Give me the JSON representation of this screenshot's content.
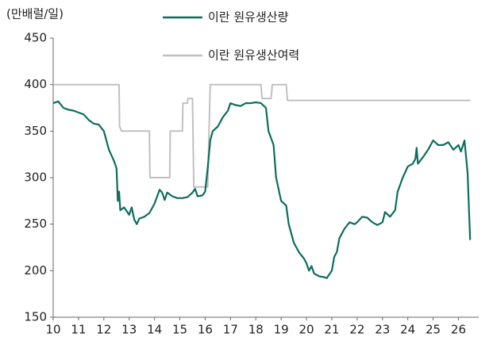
{
  "chart_data": {
    "type": "line",
    "y_label": "(만배럴/일)",
    "xlim": [
      10,
      26.8
    ],
    "xticks": [
      10,
      11,
      12,
      13,
      14,
      15,
      16,
      17,
      18,
      19,
      20,
      21,
      22,
      23,
      24,
      25,
      26
    ],
    "ylim": [
      150,
      450
    ],
    "yticks": [
      150,
      200,
      250,
      300,
      350,
      400,
      450
    ],
    "grid": false,
    "series": [
      {
        "name": "이란 원유생산량",
        "color": "#0b6e5b",
        "x": [
          10.0,
          10.2,
          10.4,
          10.6,
          10.8,
          11.0,
          11.2,
          11.4,
          11.6,
          11.8,
          12.0,
          12.2,
          12.4,
          12.5,
          12.55,
          12.6,
          12.65,
          12.8,
          13.0,
          13.1,
          13.2,
          13.3,
          13.4,
          13.6,
          13.8,
          14.0,
          14.2,
          14.3,
          14.4,
          14.5,
          14.7,
          14.9,
          15.1,
          15.3,
          15.5,
          15.6,
          15.7,
          15.9,
          16.0,
          16.1,
          16.2,
          16.3,
          16.5,
          16.7,
          16.9,
          17.0,
          17.2,
          17.4,
          17.6,
          17.8,
          18.0,
          18.2,
          18.4,
          18.5,
          18.7,
          18.8,
          19.0,
          19.2,
          19.3,
          19.5,
          19.7,
          19.9,
          20.0,
          20.1,
          20.2,
          20.3,
          20.5,
          20.7,
          20.8,
          21.0,
          21.1,
          21.2,
          21.3,
          21.5,
          21.7,
          21.9,
          22.0,
          22.2,
          22.4,
          22.6,
          22.8,
          23.0,
          23.1,
          23.3,
          23.5,
          23.6,
          23.8,
          24.0,
          24.2,
          24.3,
          24.35,
          24.4,
          24.6,
          24.8,
          25.0,
          25.2,
          25.4,
          25.6,
          25.8,
          26.0,
          26.1,
          26.24,
          26.36,
          26.46
        ],
        "values": [
          380,
          382,
          375,
          373,
          372,
          370,
          368,
          362,
          358,
          357,
          350,
          330,
          318,
          310,
          275,
          285,
          265,
          268,
          260,
          268,
          255,
          250,
          256,
          258,
          262,
          272,
          287,
          284,
          276,
          284,
          280,
          278,
          278,
          279,
          284,
          288,
          280,
          281,
          285,
          310,
          340,
          350,
          355,
          365,
          372,
          380,
          378,
          377,
          380,
          380,
          381,
          380,
          375,
          350,
          335,
          300,
          275,
          270,
          250,
          230,
          220,
          213,
          208,
          200,
          205,
          197,
          194,
          193,
          192,
          200,
          215,
          220,
          235,
          245,
          252,
          250,
          252,
          258,
          257,
          252,
          249,
          252,
          263,
          258,
          265,
          285,
          300,
          312,
          315,
          320,
          332,
          315,
          322,
          330,
          340,
          335,
          335,
          338,
          330,
          335,
          328,
          340,
          305,
          233
        ]
      },
      {
        "name": "이란 원유생산여력",
        "color": "#c0c0c0",
        "x": [
          10.0,
          12.6,
          12.62,
          12.7,
          13.8,
          13.82,
          14.6,
          14.62,
          15.1,
          15.12,
          15.3,
          15.32,
          15.5,
          15.55,
          16.1,
          16.2,
          18.2,
          18.25,
          18.6,
          18.65,
          19.2,
          19.25,
          26.46
        ],
        "values": [
          400,
          400,
          355,
          350,
          350,
          300,
          300,
          350,
          350,
          380,
          380,
          385,
          385,
          290,
          290,
          400,
          400,
          385,
          385,
          400,
          400,
          383,
          383
        ]
      }
    ]
  }
}
